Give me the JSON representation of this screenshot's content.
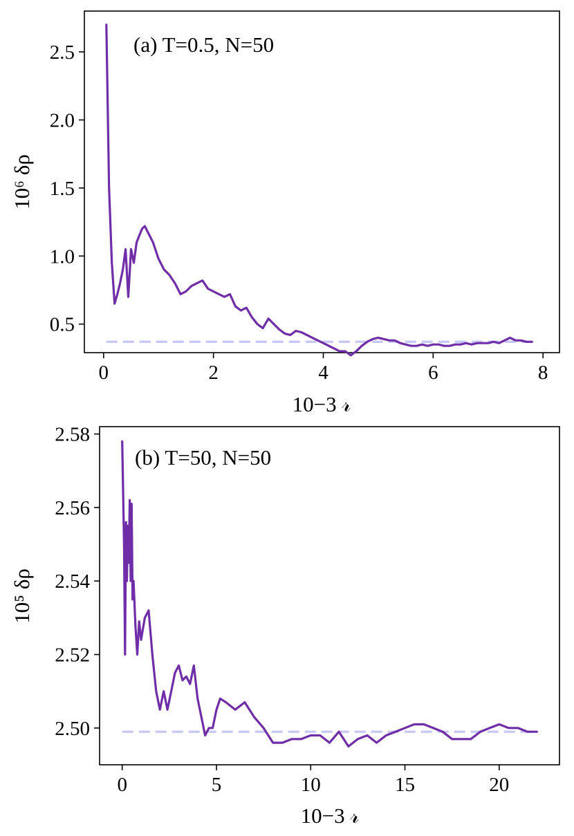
{
  "chart_data": [
    {
      "type": "line",
      "annotation": "(a) T=0.5, N=50",
      "xlabel": "10−3 𝓇",
      "ylabel": "10⁶ δρ",
      "xlim": [
        -0.35,
        8.3
      ],
      "ylim": [
        0.29,
        2.8
      ],
      "xticks": [
        0,
        2,
        4,
        6,
        8
      ],
      "yticks": [
        0.5,
        1.0,
        1.5,
        2.0,
        2.5
      ],
      "ytick_labels": [
        "0.5",
        "1.0",
        "1.5",
        "2.0",
        "2.5"
      ],
      "series_color": "#6f2da8",
      "reference": {
        "y": 0.37,
        "x_range": [
          0.05,
          7.8
        ],
        "color": "#c8c8f7",
        "style": "dashed"
      },
      "x": [
        0.05,
        0.1,
        0.15,
        0.2,
        0.25,
        0.3,
        0.35,
        0.4,
        0.45,
        0.5,
        0.55,
        0.6,
        0.65,
        0.7,
        0.75,
        0.8,
        0.9,
        1.0,
        1.1,
        1.2,
        1.3,
        1.4,
        1.5,
        1.6,
        1.7,
        1.8,
        1.9,
        2.0,
        2.1,
        2.2,
        2.3,
        2.4,
        2.5,
        2.6,
        2.7,
        2.8,
        2.9,
        3.0,
        3.1,
        3.2,
        3.3,
        3.4,
        3.5,
        3.6,
        3.7,
        3.8,
        3.9,
        4.0,
        4.1,
        4.2,
        4.3,
        4.4,
        4.5,
        4.6,
        4.7,
        4.8,
        4.9,
        5.0,
        5.1,
        5.2,
        5.3,
        5.4,
        5.5,
        5.6,
        5.7,
        5.8,
        5.9,
        6.0,
        6.1,
        6.2,
        6.3,
        6.4,
        6.5,
        6.6,
        6.7,
        6.8,
        6.9,
        7.0,
        7.1,
        7.2,
        7.3,
        7.4,
        7.5,
        7.6,
        7.7,
        7.8
      ],
      "y": [
        2.7,
        1.5,
        0.95,
        0.65,
        0.72,
        0.8,
        0.9,
        1.05,
        0.7,
        1.05,
        0.95,
        1.1,
        1.15,
        1.2,
        1.22,
        1.18,
        1.1,
        0.98,
        0.9,
        0.86,
        0.8,
        0.72,
        0.74,
        0.78,
        0.8,
        0.82,
        0.76,
        0.74,
        0.72,
        0.7,
        0.72,
        0.63,
        0.6,
        0.62,
        0.55,
        0.5,
        0.47,
        0.54,
        0.5,
        0.46,
        0.43,
        0.42,
        0.45,
        0.44,
        0.42,
        0.4,
        0.38,
        0.36,
        0.34,
        0.32,
        0.3,
        0.3,
        0.27,
        0.3,
        0.34,
        0.37,
        0.39,
        0.4,
        0.39,
        0.38,
        0.38,
        0.36,
        0.35,
        0.34,
        0.34,
        0.35,
        0.34,
        0.35,
        0.35,
        0.34,
        0.34,
        0.35,
        0.35,
        0.36,
        0.35,
        0.36,
        0.36,
        0.36,
        0.37,
        0.36,
        0.38,
        0.4,
        0.38,
        0.38,
        0.37,
        0.37
      ]
    },
    {
      "type": "line",
      "annotation": "(b) T=50, N=50",
      "xlabel": "10−3 𝓇",
      "ylabel": "10⁵ δρ",
      "xlim": [
        -1.2,
        23.2
      ],
      "ylim": [
        2.49,
        2.582
      ],
      "xticks": [
        0,
        5,
        10,
        15,
        20
      ],
      "yticks": [
        2.5,
        2.52,
        2.54,
        2.56,
        2.58
      ],
      "ytick_labels": [
        "2.50",
        "2.52",
        "2.54",
        "2.56",
        "2.58"
      ],
      "series_color": "#6f2da8",
      "reference": {
        "y": 2.499,
        "x_range": [
          0.0,
          22.0
        ],
        "color": "#c8c8f7",
        "style": "dashed"
      },
      "x": [
        0.0,
        0.1,
        0.15,
        0.2,
        0.25,
        0.3,
        0.35,
        0.4,
        0.45,
        0.5,
        0.55,
        0.6,
        0.7,
        0.8,
        0.9,
        1.0,
        1.2,
        1.4,
        1.6,
        1.8,
        2.0,
        2.2,
        2.4,
        2.6,
        2.8,
        3.0,
        3.2,
        3.4,
        3.6,
        3.8,
        4.0,
        4.2,
        4.4,
        4.6,
        4.8,
        5.0,
        5.2,
        5.5,
        6.0,
        6.5,
        7.0,
        7.5,
        8.0,
        8.5,
        9.0,
        9.5,
        10.0,
        10.5,
        11.0,
        11.5,
        12.0,
        12.5,
        13.0,
        13.5,
        14.0,
        14.5,
        15.0,
        15.5,
        16.0,
        16.5,
        17.0,
        17.5,
        18.0,
        18.5,
        19.0,
        19.5,
        20.0,
        20.5,
        21.0,
        21.5,
        22.0
      ],
      "y": [
        2.578,
        2.55,
        2.52,
        2.556,
        2.54,
        2.555,
        2.545,
        2.562,
        2.54,
        2.561,
        2.535,
        2.54,
        2.528,
        2.52,
        2.529,
        2.524,
        2.53,
        2.532,
        2.52,
        2.51,
        2.505,
        2.51,
        2.505,
        2.51,
        2.515,
        2.517,
        2.513,
        2.514,
        2.512,
        2.517,
        2.508,
        2.503,
        2.498,
        2.5,
        2.5,
        2.505,
        2.508,
        2.507,
        2.505,
        2.507,
        2.503,
        2.5,
        2.496,
        2.496,
        2.497,
        2.497,
        2.498,
        2.498,
        2.496,
        2.499,
        2.495,
        2.497,
        2.498,
        2.496,
        2.498,
        2.499,
        2.5,
        2.501,
        2.501,
        2.5,
        2.499,
        2.497,
        2.497,
        2.497,
        2.499,
        2.5,
        2.501,
        2.5,
        2.5,
        2.499,
        2.499
      ]
    }
  ]
}
